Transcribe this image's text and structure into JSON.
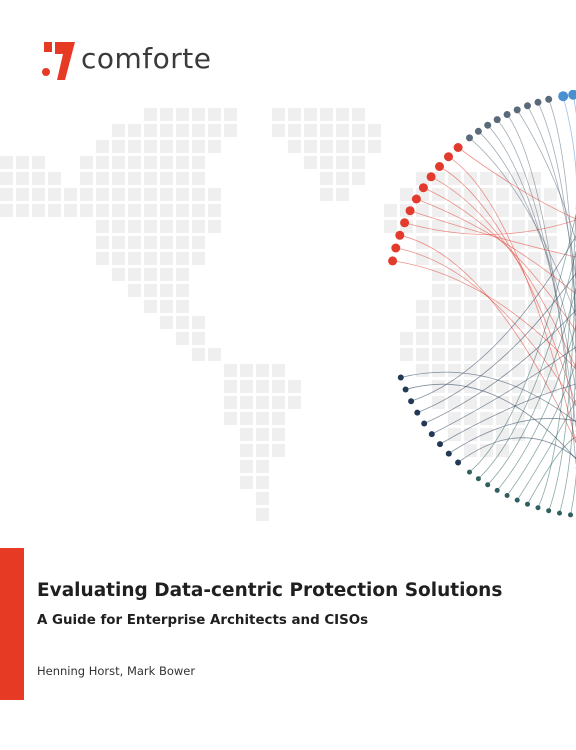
{
  "logo": {
    "brand_name": "comforte",
    "brand_color": "#e73a25"
  },
  "document": {
    "title": "Evaluating Data-centric Protection Solutions",
    "subtitle": "A Guide for Enterprise Architects and CISOs",
    "authors": "Henning Horst, Mark Bower"
  },
  "colors": {
    "accent_red": "#e73a25",
    "map_gray": "#efefef",
    "text_dark": "#1f1f1f"
  }
}
